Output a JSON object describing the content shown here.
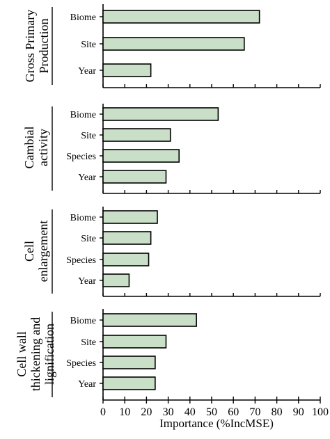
{
  "chart_data": {
    "type": "bar",
    "orientation": "horizontal",
    "xlabel": "Importance (%IncMSE)",
    "xlim": [
      0,
      100
    ],
    "xticks": [
      "0",
      "10",
      "20",
      "30",
      "40",
      "50",
      "60",
      "70",
      "80",
      "90",
      "100"
    ],
    "bar_color": "#cadfc7",
    "groups": [
      {
        "name_lines": [
          "Gross Primary",
          "Production"
        ],
        "categories": [
          "Biome",
          "Site",
          "Year"
        ],
        "values": [
          72,
          65,
          22
        ]
      },
      {
        "name_lines": [
          "Cambial",
          "activity"
        ],
        "categories": [
          "Biome",
          "Site",
          "Species",
          "Year"
        ],
        "values": [
          53,
          31,
          35,
          29
        ]
      },
      {
        "name_lines": [
          "Cell",
          "enlargement"
        ],
        "categories": [
          "Biome",
          "Site",
          "Species",
          "Year"
        ],
        "values": [
          25,
          22,
          21,
          12
        ]
      },
      {
        "name_lines": [
          "Cell wall",
          "thickening and",
          "lignification"
        ],
        "categories": [
          "Biome",
          "Site",
          "Species",
          "Year"
        ],
        "values": [
          43,
          29,
          24,
          24
        ]
      }
    ]
  }
}
